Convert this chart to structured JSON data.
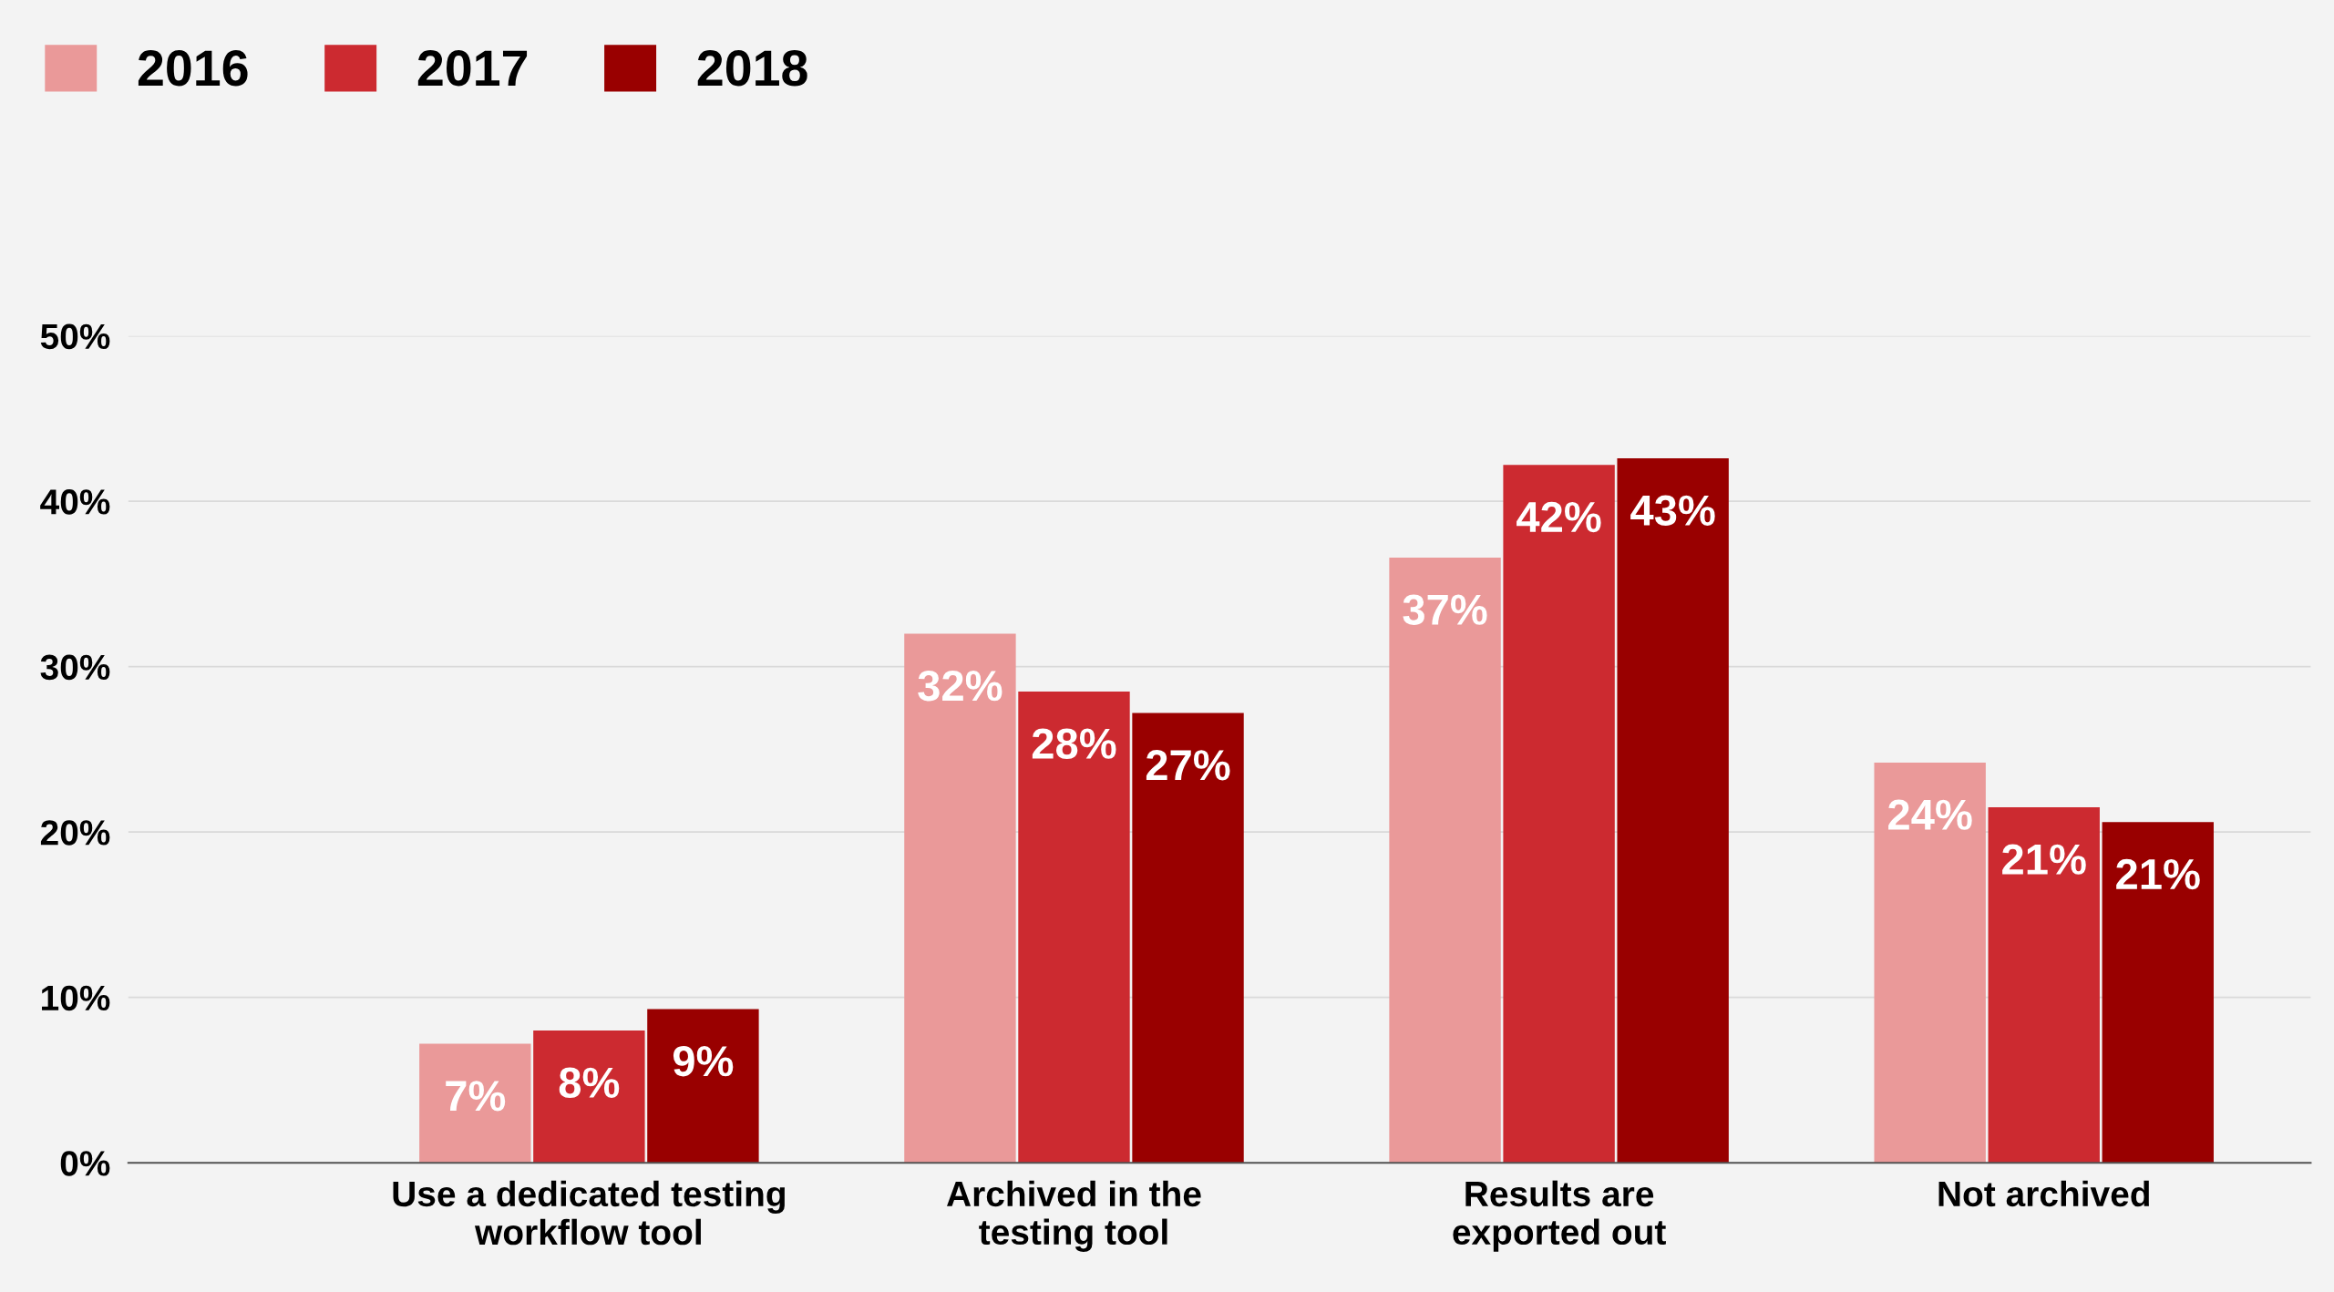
{
  "chart_data": {
    "type": "bar",
    "categories": [
      "Use a dedicated testing\nworkflow tool",
      "Archived in the\ntesting tool",
      "Results are\nexported out",
      "Not archived"
    ],
    "series": [
      {
        "name": "2016",
        "color": "#ea9999",
        "values": [
          7.2,
          32.0,
          36.6,
          24.2
        ],
        "value_labels": [
          "7%",
          "32%",
          "37%",
          "24%"
        ]
      },
      {
        "name": "2017",
        "color": "#cc2a30",
        "values": [
          8.0,
          28.5,
          42.2,
          21.5
        ],
        "value_labels": [
          "8%",
          "28%",
          "42%",
          "21%"
        ]
      },
      {
        "name": "2018",
        "color": "#990000",
        "values": [
          9.3,
          27.2,
          42.6,
          20.6
        ],
        "value_labels": [
          "9%",
          "27%",
          "43%",
          "21%"
        ]
      }
    ],
    "ylim": [
      0,
      50
    ],
    "yticks": [
      {
        "value": 0,
        "label": "0%"
      },
      {
        "value": 10,
        "label": "10%"
      },
      {
        "value": 20,
        "label": "20%"
      },
      {
        "value": 30,
        "label": "30%"
      },
      {
        "value": 40,
        "label": "40%"
      },
      {
        "value": 50,
        "label": "50%"
      }
    ],
    "grid": "y",
    "legend": "top left"
  }
}
